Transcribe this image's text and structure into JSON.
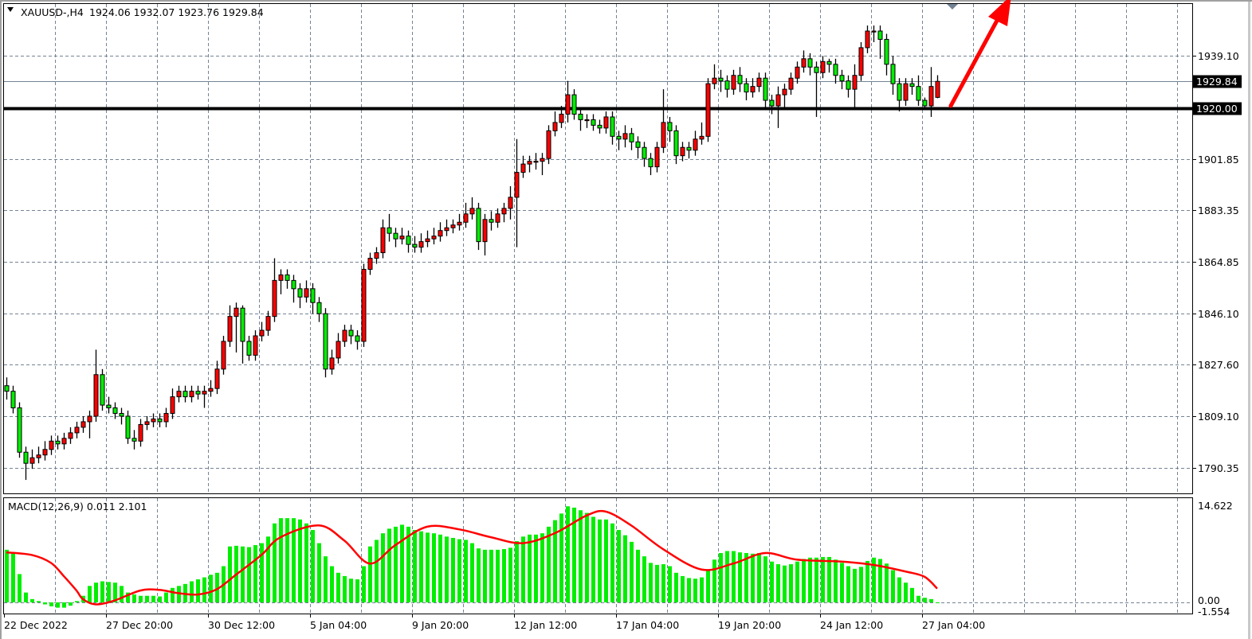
{
  "header": {
    "symbol_timeframe": "XAUUSD-,H4",
    "ohlc_text": "1924.06 1932.07 1923.76 1929.84"
  },
  "colors": {
    "bull_candle": "#ff0000",
    "bear_candle": "#00ee00",
    "macd_histogram": "#00ee00",
    "signal_line": "#ff0000",
    "grid": "#748394",
    "level_line": "#000000",
    "bid_line": "#748394",
    "arrow": "#ff0000"
  },
  "chart_data": [
    {
      "type": "candlestick",
      "pane": "main",
      "symbol": "XAUUSD-",
      "timeframe": "H4",
      "grid": true,
      "ylim": [
        1790.35,
        1939.1
      ],
      "y_tick_labels": [
        "1939.10",
        "1901.85",
        "1883.35",
        "1864.85",
        "1846.10",
        "1827.60",
        "1809.10",
        "1790.35"
      ],
      "horizontal_level": {
        "label": "1920.00",
        "value": 1920.0
      },
      "current_price": {
        "label": "1929.84",
        "value": 1929.84
      },
      "x_tick_labels": [
        {
          "index": 0,
          "label": "22 Dec 2022"
        },
        {
          "index": 16,
          "label": "27 Dec 20:00"
        },
        {
          "index": 32,
          "label": "30 Dec 12:00"
        },
        {
          "index": 48,
          "label": "5 Jan 04:00"
        },
        {
          "index": 64,
          "label": "9 Jan 20:00"
        },
        {
          "index": 80,
          "label": "12 Jan 12:00"
        },
        {
          "index": 96,
          "label": "17 Jan 04:00"
        },
        {
          "index": 112,
          "label": "19 Jan 20:00"
        },
        {
          "index": 128,
          "label": "24 Jan 12:00"
        },
        {
          "index": 144,
          "label": "27 Jan 04:00"
        }
      ],
      "ohlc": [
        [
          1820,
          1823,
          1815,
          1818
        ],
        [
          1818,
          1820,
          1810,
          1812
        ],
        [
          1812,
          1814,
          1794,
          1796
        ],
        [
          1796,
          1798,
          1786,
          1792
        ],
        [
          1792,
          1797,
          1790,
          1794
        ],
        [
          1794,
          1798,
          1792,
          1795
        ],
        [
          1795,
          1800,
          1793,
          1797
        ],
        [
          1797,
          1802,
          1795,
          1800
        ],
        [
          1800,
          1802,
          1797,
          1799
        ],
        [
          1799,
          1803,
          1797,
          1801
        ],
        [
          1801,
          1805,
          1799,
          1803
        ],
        [
          1803,
          1807,
          1801,
          1805
        ],
        [
          1805,
          1809,
          1803,
          1807
        ],
        [
          1807,
          1811,
          1801,
          1809
        ],
        [
          1809,
          1833,
          1807,
          1824
        ],
        [
          1824,
          1826,
          1811,
          1813
        ],
        [
          1813,
          1816,
          1810,
          1812
        ],
        [
          1812,
          1814,
          1808,
          1810
        ],
        [
          1810,
          1812,
          1806,
          1809
        ],
        [
          1809,
          1811,
          1799,
          1801
        ],
        [
          1801,
          1804,
          1797,
          1800
        ],
        [
          1800,
          1808,
          1798,
          1806
        ],
        [
          1806,
          1809,
          1804,
          1807
        ],
        [
          1807,
          1810,
          1805,
          1808
        ],
        [
          1808,
          1810,
          1805,
          1807
        ],
        [
          1807,
          1812,
          1805,
          1810
        ],
        [
          1810,
          1819,
          1808,
          1816
        ],
        [
          1816,
          1820,
          1814,
          1818
        ],
        [
          1818,
          1820,
          1814,
          1816
        ],
        [
          1816,
          1820,
          1814,
          1818
        ],
        [
          1818,
          1820,
          1815,
          1817
        ],
        [
          1817,
          1820,
          1812,
          1818
        ],
        [
          1818,
          1822,
          1816,
          1819
        ],
        [
          1819,
          1829,
          1817,
          1826
        ],
        [
          1826,
          1838,
          1824,
          1836
        ],
        [
          1836,
          1849,
          1834,
          1845
        ],
        [
          1845,
          1850,
          1832,
          1848
        ],
        [
          1848,
          1849,
          1828,
          1836
        ],
        [
          1836,
          1838,
          1829,
          1831
        ],
        [
          1831,
          1840,
          1829,
          1838
        ],
        [
          1838,
          1843,
          1836,
          1840
        ],
        [
          1840,
          1847,
          1838,
          1845
        ],
        [
          1845,
          1866,
          1843,
          1858
        ],
        [
          1858,
          1862,
          1853,
          1860
        ],
        [
          1860,
          1862,
          1855,
          1858
        ],
        [
          1858,
          1860,
          1850,
          1855
        ],
        [
          1855,
          1857,
          1848,
          1852
        ],
        [
          1852,
          1858,
          1850,
          1855
        ],
        [
          1855,
          1857,
          1846,
          1850
        ],
        [
          1850,
          1852,
          1843,
          1846
        ],
        [
          1846,
          1848,
          1823,
          1826
        ],
        [
          1826,
          1833,
          1824,
          1830
        ],
        [
          1830,
          1839,
          1828,
          1836
        ],
        [
          1836,
          1842,
          1834,
          1840
        ],
        [
          1840,
          1842,
          1835,
          1838
        ],
        [
          1838,
          1840,
          1833,
          1836
        ],
        [
          1836,
          1864,
          1834,
          1862
        ],
        [
          1862,
          1868,
          1860,
          1866
        ],
        [
          1866,
          1870,
          1864,
          1868
        ],
        [
          1868,
          1880,
          1866,
          1877
        ],
        [
          1877,
          1882,
          1872,
          1875
        ],
        [
          1875,
          1877,
          1870,
          1873
        ],
        [
          1873,
          1877,
          1871,
          1874
        ],
        [
          1874,
          1876,
          1868,
          1871
        ],
        [
          1871,
          1874,
          1868,
          1870
        ],
        [
          1870,
          1875,
          1868,
          1872
        ],
        [
          1872,
          1876,
          1870,
          1873
        ],
        [
          1873,
          1877,
          1871,
          1874
        ],
        [
          1874,
          1879,
          1872,
          1876
        ],
        [
          1876,
          1880,
          1874,
          1877
        ],
        [
          1877,
          1880,
          1875,
          1878
        ],
        [
          1878,
          1882,
          1876,
          1879
        ],
        [
          1879,
          1886,
          1877,
          1882
        ],
        [
          1882,
          1888,
          1880,
          1884
        ],
        [
          1884,
          1886,
          1869,
          1872
        ],
        [
          1872,
          1882,
          1867,
          1880
        ],
        [
          1880,
          1883,
          1876,
          1879
        ],
        [
          1879,
          1884,
          1877,
          1882
        ],
        [
          1882,
          1886,
          1879,
          1884
        ],
        [
          1884,
          1892,
          1880,
          1888
        ],
        [
          1888,
          1909,
          1870,
          1897
        ],
        [
          1897,
          1903,
          1895,
          1900
        ],
        [
          1900,
          1903,
          1897,
          1901
        ],
        [
          1901,
          1904,
          1898,
          1901
        ],
        [
          1901,
          1904,
          1896,
          1902
        ],
        [
          1902,
          1914,
          1900,
          1912
        ],
        [
          1912,
          1919,
          1910,
          1915
        ],
        [
          1915,
          1921,
          1913,
          1918
        ],
        [
          1918,
          1930,
          1915,
          1925
        ],
        [
          1925,
          1927,
          1916,
          1918
        ],
        [
          1918,
          1920,
          1912,
          1916
        ],
        [
          1916,
          1918,
          1913,
          1916
        ],
        [
          1916,
          1918,
          1912,
          1914
        ],
        [
          1914,
          1916,
          1911,
          1913
        ],
        [
          1913,
          1919,
          1911,
          1917
        ],
        [
          1917,
          1919,
          1907,
          1910
        ],
        [
          1910,
          1912,
          1905,
          1909
        ],
        [
          1909,
          1914,
          1906,
          1911
        ],
        [
          1911,
          1913,
          1905,
          1908
        ],
        [
          1908,
          1910,
          1902,
          1906
        ],
        [
          1906,
          1908,
          1899,
          1902
        ],
        [
          1902,
          1904,
          1896,
          1899
        ],
        [
          1899,
          1908,
          1897,
          1906
        ],
        [
          1906,
          1927,
          1904,
          1915
        ],
        [
          1915,
          1917,
          1908,
          1912
        ],
        [
          1912,
          1914,
          1900,
          1903
        ],
        [
          1903,
          1908,
          1901,
          1906
        ],
        [
          1906,
          1908,
          1902,
          1905
        ],
        [
          1905,
          1912,
          1903,
          1909
        ],
        [
          1909,
          1915,
          1907,
          1910
        ],
        [
          1910,
          1931,
          1908,
          1929
        ],
        [
          1929,
          1936,
          1927,
          1931
        ],
        [
          1931,
          1934,
          1926,
          1930
        ],
        [
          1930,
          1932,
          1924,
          1927
        ],
        [
          1927,
          1934,
          1925,
          1932
        ],
        [
          1932,
          1935,
          1926,
          1929
        ],
        [
          1929,
          1931,
          1923,
          1926
        ],
        [
          1926,
          1931,
          1924,
          1928
        ],
        [
          1928,
          1933,
          1926,
          1931
        ],
        [
          1931,
          1933,
          1920,
          1923
        ],
        [
          1923,
          1925,
          1918,
          1921
        ],
        [
          1921,
          1928,
          1913,
          1925
        ],
        [
          1925,
          1929,
          1920,
          1927
        ],
        [
          1927,
          1933,
          1925,
          1931
        ],
        [
          1931,
          1937,
          1929,
          1935
        ],
        [
          1935,
          1941,
          1933,
          1938
        ],
        [
          1938,
          1940,
          1932,
          1935
        ],
        [
          1935,
          1937,
          1917,
          1933
        ],
        [
          1933,
          1939,
          1931,
          1937
        ],
        [
          1937,
          1938,
          1933,
          1936
        ],
        [
          1936,
          1938,
          1929,
          1932
        ],
        [
          1932,
          1934,
          1927,
          1930
        ],
        [
          1930,
          1932,
          1924,
          1927
        ],
        [
          1927,
          1936,
          1920,
          1932
        ],
        [
          1932,
          1944,
          1930,
          1942
        ],
        [
          1942,
          1950,
          1940,
          1948
        ],
        [
          1948,
          1950,
          1944,
          1948
        ],
        [
          1948,
          1950,
          1938,
          1945
        ],
        [
          1945,
          1947,
          1932,
          1936
        ],
        [
          1936,
          1939,
          1925,
          1929
        ],
        [
          1929,
          1931,
          1919,
          1923
        ],
        [
          1923,
          1931,
          1921,
          1929
        ],
        [
          1929,
          1931,
          1925,
          1928
        ],
        [
          1928,
          1932,
          1921,
          1923
        ],
        [
          1923,
          1924,
          1920,
          1921
        ],
        [
          1921,
          1935,
          1917,
          1928
        ],
        [
          1924.06,
          1932.07,
          1923.76,
          1929.84
        ]
      ]
    },
    {
      "type": "bar+line",
      "pane": "indicator",
      "label": "MACD(12,26,9) 0.011 2.101",
      "ylim": [
        -1.554,
        14.622
      ],
      "y_tick_labels": [
        "14.622",
        "0.00",
        "-1.554"
      ],
      "histogram": [
        8,
        7.5,
        4.3,
        1.5,
        0.5,
        0.2,
        -0.3,
        -0.6,
        -0.8,
        -0.8,
        -0.5,
        0.2,
        1,
        2.5,
        3,
        3.2,
        3.1,
        3,
        2.5,
        1.5,
        1.2,
        1,
        1,
        1,
        0.9,
        1.5,
        2.2,
        2.5,
        2.8,
        3.2,
        3.5,
        3.8,
        4.2,
        4.5,
        5.5,
        8.5,
        8.6,
        8.5,
        8.4,
        8.7,
        9,
        10,
        12,
        12.8,
        12.8,
        12.8,
        12.6,
        12,
        11,
        9,
        7,
        5.5,
        4.5,
        4,
        3.6,
        3.5,
        5.5,
        8.5,
        9.5,
        10.5,
        11.2,
        11.5,
        11.8,
        11.5,
        11,
        10.8,
        10.6,
        10.5,
        10.3,
        10,
        9.8,
        9.6,
        9.5,
        9,
        8.2,
        8,
        8,
        8,
        8.1,
        8.3,
        9.3,
        10,
        10.3,
        10.3,
        10.5,
        11.5,
        12.5,
        13.5,
        14.6,
        14.4,
        14,
        13.6,
        13,
        12.6,
        12.6,
        12,
        11,
        10.2,
        9.2,
        8,
        7,
        6,
        5.7,
        5.8,
        5.5,
        4.5,
        4,
        3.7,
        3.6,
        3.8,
        5,
        6.5,
        7.5,
        7.8,
        7.8,
        7.6,
        7.5,
        7.4,
        7.5,
        7,
        6.2,
        5.8,
        5.6,
        5.8,
        6.2,
        6.6,
        6.8,
        6.8,
        6.9,
        6.9,
        6.5,
        6,
        5.5,
        5.1,
        5.4,
        6.3,
        6.8,
        6.6,
        5.9,
        4.9,
        3.8,
        3,
        2.2,
        1,
        0.7,
        0.5,
        0.011
      ],
      "signal": [
        [
          0,
          7.6
        ],
        [
          4,
          7.2
        ],
        [
          7,
          6
        ],
        [
          9,
          4
        ],
        [
          11,
          1.8
        ],
        [
          12,
          0.5
        ],
        [
          14,
          -0.3
        ],
        [
          17,
          0.3
        ],
        [
          21,
          1.8
        ],
        [
          24,
          1.9
        ],
        [
          27,
          1.4
        ],
        [
          30,
          1.2
        ],
        [
          33,
          2
        ],
        [
          36,
          4.2
        ],
        [
          40,
          7.2
        ],
        [
          43,
          9.9
        ],
        [
          49,
          11.7
        ],
        [
          53,
          9.4
        ],
        [
          57,
          5.9
        ],
        [
          61,
          8.7
        ],
        [
          66,
          11.5
        ],
        [
          71,
          11.1
        ],
        [
          76,
          9.9
        ],
        [
          81,
          9
        ],
        [
          86,
          10.5
        ],
        [
          91,
          13.2
        ],
        [
          94,
          13.8
        ],
        [
          98,
          11.7
        ],
        [
          103,
          8.1
        ],
        [
          109,
          5
        ],
        [
          114,
          5.9
        ],
        [
          119,
          7.5
        ],
        [
          124,
          6.5
        ],
        [
          131,
          6.2
        ],
        [
          136,
          5.7
        ],
        [
          141,
          4.7
        ],
        [
          144,
          3.9
        ],
        [
          146,
          2.101
        ]
      ]
    }
  ]
}
